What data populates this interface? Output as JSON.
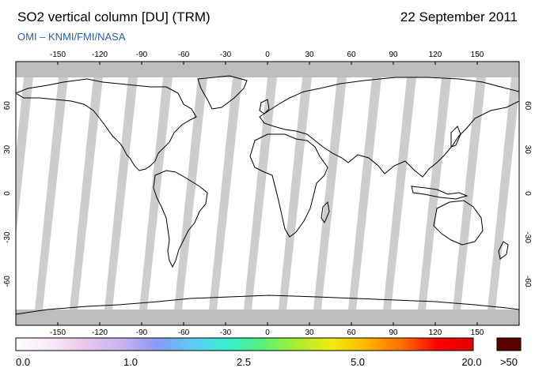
{
  "header": {
    "title": "SO2 vertical column [DU] (TRM)",
    "date": "22 September 2011",
    "subtitle": "OMI  –  KNMI/FMI/NASA"
  },
  "map": {
    "lon_ticks": [
      "-150",
      "-120",
      "-90",
      "-60",
      "-30",
      "0",
      "30",
      "60",
      "90",
      "120",
      "150"
    ],
    "lat_ticks": [
      "60",
      "30",
      "0",
      "-30",
      "-60"
    ],
    "land_color": "#000000",
    "swath_color": "#c8c8c8",
    "polar_color": "#bdbdbd"
  },
  "colorbar": {
    "labels": [
      "0.0",
      "1.0",
      "2.5",
      "5.0",
      "20.0"
    ],
    "overflow_label": ">50",
    "overflow_color": "#5a0000",
    "gradient_stops": [
      "#ffffff",
      "#f7e8f7",
      "#e8c8ec",
      "#c9b2ee",
      "#8c9af5",
      "#5ecaf5",
      "#37f0d0",
      "#59f07a",
      "#a8ef30",
      "#f2ea10",
      "#ffb400",
      "#ff6a00",
      "#ff0000",
      "#e00000"
    ]
  }
}
